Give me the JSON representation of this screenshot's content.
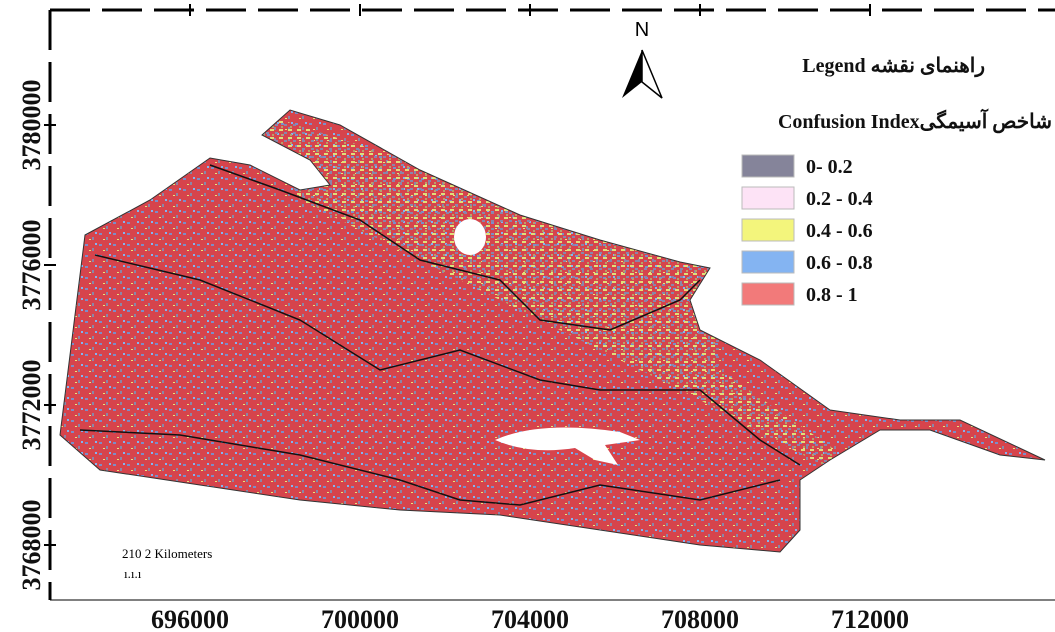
{
  "legend": {
    "title": "راهنمای نقشه Legend",
    "subtitle": "شاخص آسیمگیConfusion Index",
    "items": [
      {
        "label": "0- 0.2",
        "color": "#85849a"
      },
      {
        "label": "0.2 - 0.4",
        "color": "#fde3f6"
      },
      {
        "label": "0.4 - 0.6",
        "color": "#f3f57c"
      },
      {
        "label": "0.6 - 0.8",
        "color": "#84b4f2"
      },
      {
        "label": "0.8 - 1",
        "color": "#f27a7a"
      }
    ]
  },
  "north_arrow": "N",
  "scale_bar": {
    "label": "210 2 Kilometers",
    "ticks": "ı.ı.ı"
  },
  "axes": {
    "x_ticks": [
      696000,
      700000,
      704000,
      708000,
      712000
    ],
    "y_ticks": [
      3780000,
      3776000,
      3772000,
      3768000
    ]
  }
}
